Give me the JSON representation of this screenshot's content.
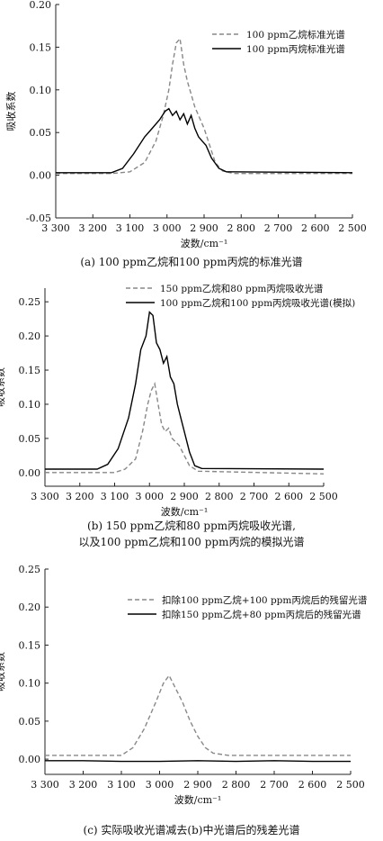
{
  "chart_data": [
    {
      "type": "line",
      "ylabel": "吸收系数",
      "xlabel": "波数/cm⁻¹",
      "xlim": [
        3300,
        2500
      ],
      "x_reversed": true,
      "ylim": [
        -0.05,
        0.2
      ],
      "xticks": [
        "3 300",
        "3 200",
        "3 100",
        "3 000",
        "2 900",
        "2 800",
        "2 700",
        "2 600",
        "2 500"
      ],
      "yticks": [
        "-0.05",
        "0.00",
        "0.05",
        "0.10",
        "0.15",
        "0.20"
      ],
      "legend_position": "top-right",
      "caption": "(a) 100 ppm乙烷和100 ppm丙烷的标准光谱",
      "series": [
        {
          "name": "100 ppm乙烷标准光谱",
          "style": "dashed",
          "color": "#888888",
          "points": [
            [
              3300,
              0.002
            ],
            [
              3150,
              0.002
            ],
            [
              3100,
              0.004
            ],
            [
              3060,
              0.015
            ],
            [
              3030,
              0.04
            ],
            [
              3010,
              0.07
            ],
            [
              2995,
              0.1
            ],
            [
              2985,
              0.13
            ],
            [
              2975,
              0.155
            ],
            [
              2965,
              0.16
            ],
            [
              2955,
              0.13
            ],
            [
              2945,
              0.11
            ],
            [
              2935,
              0.095
            ],
            [
              2925,
              0.08
            ],
            [
              2915,
              0.07
            ],
            [
              2900,
              0.055
            ],
            [
              2885,
              0.035
            ],
            [
              2870,
              0.015
            ],
            [
              2850,
              0.005
            ],
            [
              2820,
              0.002
            ],
            [
              2500,
              0.002
            ]
          ]
        },
        {
          "name": "100 ppm丙烷标准光谱",
          "style": "solid",
          "color": "#000000",
          "points": [
            [
              3300,
              0.003
            ],
            [
              3150,
              0.003
            ],
            [
              3120,
              0.008
            ],
            [
              3090,
              0.025
            ],
            [
              3060,
              0.045
            ],
            [
              3040,
              0.055
            ],
            [
              3020,
              0.065
            ],
            [
              3005,
              0.075
            ],
            [
              2995,
              0.078
            ],
            [
              2985,
              0.07
            ],
            [
              2975,
              0.075
            ],
            [
              2965,
              0.065
            ],
            [
              2955,
              0.072
            ],
            [
              2945,
              0.06
            ],
            [
              2935,
              0.07
            ],
            [
              2925,
              0.055
            ],
            [
              2915,
              0.045
            ],
            [
              2905,
              0.04
            ],
            [
              2895,
              0.035
            ],
            [
              2880,
              0.02
            ],
            [
              2860,
              0.008
            ],
            [
              2840,
              0.004
            ],
            [
              2500,
              0.003
            ]
          ]
        }
      ]
    },
    {
      "type": "line",
      "ylabel": "吸收系数",
      "xlabel": "波数/cm⁻¹",
      "xlim": [
        3300,
        2500
      ],
      "x_reversed": true,
      "ylim": [
        -0.02,
        0.27
      ],
      "xticks": [
        "3 300",
        "3 200",
        "3 100",
        "3 000",
        "2 900",
        "2 800",
        "2 700",
        "2 600",
        "2 500"
      ],
      "yticks": [
        "0.00",
        "0.05",
        "0.10",
        "0.15",
        "0.20",
        "0.25"
      ],
      "legend_position": "top-right",
      "caption_lines": [
        "(b) 150 ppm乙烷和80 ppm丙烷吸收光谱,",
        "以及100 ppm乙烷和100 ppm丙烷的模拟光谱"
      ],
      "series": [
        {
          "name": "150 ppm乙烷和80 ppm丙烷吸收光谱",
          "style": "dashed",
          "color": "#888888",
          "points": [
            [
              3300,
              0.0
            ],
            [
              3100,
              0.0
            ],
            [
              3070,
              0.005
            ],
            [
              3040,
              0.02
            ],
            [
              3020,
              0.06
            ],
            [
              3005,
              0.1
            ],
            [
              2995,
              0.12
            ],
            [
              2985,
              0.13
            ],
            [
              2975,
              0.1
            ],
            [
              2965,
              0.07
            ],
            [
              2955,
              0.06
            ],
            [
              2945,
              0.065
            ],
            [
              2935,
              0.05
            ],
            [
              2925,
              0.045
            ],
            [
              2915,
              0.04
            ],
            [
              2900,
              0.025
            ],
            [
              2885,
              0.01
            ],
            [
              2860,
              0.002
            ],
            [
              2500,
              -0.002
            ]
          ]
        },
        {
          "name": "100 ppm乙烷和100 ppm丙烷吸收光谱(模拟)",
          "style": "solid",
          "color": "#000000",
          "points": [
            [
              3300,
              0.005
            ],
            [
              3150,
              0.005
            ],
            [
              3120,
              0.012
            ],
            [
              3090,
              0.035
            ],
            [
              3060,
              0.08
            ],
            [
              3040,
              0.13
            ],
            [
              3025,
              0.18
            ],
            [
              3010,
              0.2
            ],
            [
              3000,
              0.235
            ],
            [
              2990,
              0.23
            ],
            [
              2980,
              0.19
            ],
            [
              2970,
              0.18
            ],
            [
              2960,
              0.16
            ],
            [
              2950,
              0.17
            ],
            [
              2940,
              0.14
            ],
            [
              2930,
              0.13
            ],
            [
              2920,
              0.1
            ],
            [
              2910,
              0.08
            ],
            [
              2900,
              0.06
            ],
            [
              2885,
              0.03
            ],
            [
              2870,
              0.01
            ],
            [
              2850,
              0.006
            ],
            [
              2500,
              0.005
            ]
          ]
        }
      ]
    },
    {
      "type": "line",
      "ylabel": "吸收系数",
      "xlabel": "波数/cm⁻¹",
      "xlim": [
        3300,
        2500
      ],
      "x_reversed": true,
      "ylim": [
        -0.02,
        0.25
      ],
      "xticks": [
        "3 300",
        "3 200",
        "3 100",
        "3 000",
        "2 900",
        "2 800",
        "2 700",
        "2 600",
        "2 500"
      ],
      "yticks": [
        "0.00",
        "0.05",
        "0.10",
        "0.15",
        "0.20",
        "0.25"
      ],
      "legend_position": "top-right",
      "caption": "(c) 实际吸收光谱减去(b)中光谱后的残差光谱",
      "series": [
        {
          "name": "扣除100 ppm乙烷+100 ppm丙烷后的残留光谱",
          "style": "dashed",
          "color": "#888888",
          "points": [
            [
              3300,
              0.005
            ],
            [
              3100,
              0.005
            ],
            [
              3070,
              0.015
            ],
            [
              3040,
              0.04
            ],
            [
              3010,
              0.075
            ],
            [
              2990,
              0.1
            ],
            [
              2975,
              0.11
            ],
            [
              2960,
              0.095
            ],
            [
              2940,
              0.075
            ],
            [
              2920,
              0.05
            ],
            [
              2900,
              0.03
            ],
            [
              2880,
              0.015
            ],
            [
              2860,
              0.008
            ],
            [
              2820,
              0.005
            ],
            [
              2500,
              0.005
            ]
          ]
        },
        {
          "name": "扣除150 ppm乙烷+80 ppm丙烷后的残留光谱",
          "style": "solid",
          "color": "#000000",
          "points": [
            [
              3300,
              -0.002
            ],
            [
              3200,
              -0.002
            ],
            [
              3100,
              -0.003
            ],
            [
              3000,
              -0.003
            ],
            [
              2900,
              -0.002
            ],
            [
              2800,
              -0.003
            ],
            [
              2700,
              -0.002
            ],
            [
              2600,
              -0.003
            ],
            [
              2500,
              -0.003
            ]
          ]
        }
      ]
    }
  ]
}
